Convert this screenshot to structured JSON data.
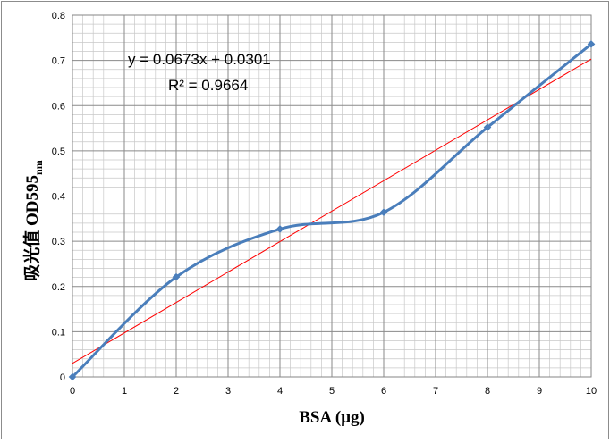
{
  "chart_data": {
    "type": "scatter",
    "title": "",
    "xlabel": "BSA (μg)",
    "ylabel_main": "吸光值 OD595",
    "ylabel_subscript": "nm",
    "xlim": [
      0,
      10
    ],
    "ylim": [
      0,
      0.8
    ],
    "x_ticks": [
      "0",
      "1",
      "2",
      "3",
      "4",
      "5",
      "6",
      "7",
      "8",
      "9",
      "10"
    ],
    "y_ticks": [
      "0",
      "0.1",
      "0.2",
      "0.3",
      "0.4",
      "0.5",
      "0.6",
      "0.7",
      "0.8"
    ],
    "grid": true,
    "minor_grid": true,
    "series": [
      {
        "x": [
          0,
          2,
          4,
          6,
          8,
          10
        ],
        "y": [
          0,
          0.221,
          0.327,
          0.364,
          0.552,
          0.736
        ],
        "color": "#4a7ebb",
        "style": "smooth-line-with-diamond-markers"
      }
    ],
    "trendline": {
      "slope": 0.0673,
      "intercept": 0.0301,
      "color": "#ff0000",
      "equation_text": "y = 0.0673x + 0.0301",
      "r2_text": "R² = 0.9664"
    }
  }
}
